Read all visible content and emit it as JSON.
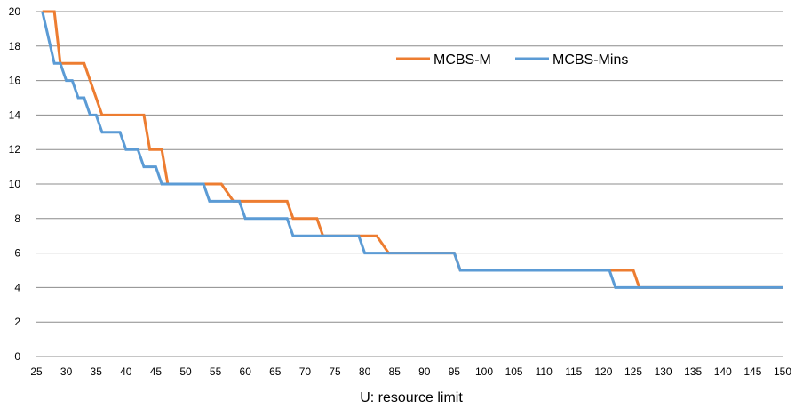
{
  "chart_data": {
    "type": "line",
    "title": "",
    "xlabel": "U: resource limit",
    "ylabel": "",
    "xlim": [
      25,
      150
    ],
    "ylim": [
      0,
      20
    ],
    "x_ticks": [
      25,
      30,
      35,
      40,
      45,
      50,
      55,
      60,
      65,
      70,
      75,
      80,
      85,
      90,
      95,
      100,
      105,
      110,
      115,
      120,
      125,
      130,
      135,
      140,
      145,
      150
    ],
    "y_ticks": [
      0,
      2,
      4,
      6,
      8,
      10,
      12,
      14,
      16,
      18,
      20
    ],
    "grid": "horizontal",
    "legend_position": "top-right",
    "series": [
      {
        "name": "MCBS-M",
        "color": "#ED7D31",
        "points": [
          [
            26,
            20
          ],
          [
            28,
            20
          ],
          [
            29,
            17
          ],
          [
            33,
            17
          ],
          [
            36,
            14
          ],
          [
            43,
            14
          ],
          [
            44,
            12
          ],
          [
            46,
            12
          ],
          [
            47,
            10
          ],
          [
            56,
            10
          ],
          [
            58,
            9
          ],
          [
            67,
            9
          ],
          [
            68,
            8
          ],
          [
            72,
            8
          ],
          [
            73,
            7
          ],
          [
            82,
            7
          ],
          [
            84,
            6
          ],
          [
            95,
            6
          ],
          [
            96,
            5
          ],
          [
            121,
            5
          ],
          [
            125,
            5
          ],
          [
            126,
            4
          ],
          [
            150,
            4
          ]
        ]
      },
      {
        "name": "MCBS-Mins",
        "color": "#5B9BD5",
        "points": [
          [
            26,
            20
          ],
          [
            28,
            17
          ],
          [
            29,
            17
          ],
          [
            30,
            16
          ],
          [
            31,
            16
          ],
          [
            32,
            15
          ],
          [
            33,
            15
          ],
          [
            34,
            14
          ],
          [
            35,
            14
          ],
          [
            36,
            13
          ],
          [
            39,
            13
          ],
          [
            40,
            12
          ],
          [
            42,
            12
          ],
          [
            43,
            11
          ],
          [
            45,
            11
          ],
          [
            46,
            10
          ],
          [
            53,
            10
          ],
          [
            54,
            9
          ],
          [
            59,
            9
          ],
          [
            60,
            8
          ],
          [
            67,
            8
          ],
          [
            68,
            7
          ],
          [
            79,
            7
          ],
          [
            80,
            6
          ],
          [
            95,
            6
          ],
          [
            96,
            5
          ],
          [
            121,
            5
          ],
          [
            122,
            4
          ],
          [
            150,
            4
          ]
        ]
      }
    ]
  }
}
